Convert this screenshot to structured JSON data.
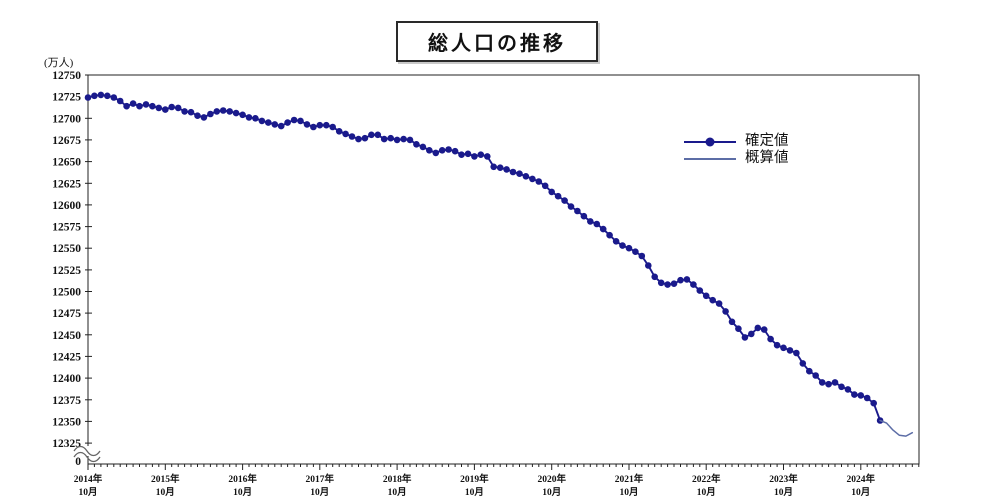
{
  "chart_data": {
    "type": "line",
    "title": "総人口の推移",
    "unit_label": "(万人)",
    "x_start": "2014-10",
    "x_tick_years": [
      "2014年",
      "2015年",
      "2016年",
      "2017年",
      "2018年",
      "2019年",
      "2020年",
      "2021年",
      "2022年",
      "2023年",
      "2024年"
    ],
    "x_tick_sublabel": "10月",
    "yticks": [
      12750,
      12725,
      12700,
      12675,
      12650,
      12625,
      12600,
      12575,
      12550,
      12525,
      12500,
      12475,
      12450,
      12425,
      12400,
      12375,
      12350,
      12325
    ],
    "ylim_display": [
      12325,
      12750
    ],
    "y_axis_zero_label": "0",
    "axis_break": true,
    "grid": false,
    "legend_position": "upper-right-inside",
    "colors": {
      "confirmed": "#1a1a8c",
      "preliminary": "#5c6da6",
      "axis": "#222222"
    },
    "series": [
      {
        "name": "確定値",
        "style": "line+marker",
        "color": "#1a1a8c",
        "start_index": 0,
        "values": [
          12724,
          12726,
          12727,
          12726,
          12724,
          12720,
          12714,
          12717,
          12714,
          12716,
          12714,
          12712,
          12710,
          12713,
          12712,
          12708,
          12707,
          12703,
          12701,
          12705,
          12708,
          12709,
          12708,
          12706,
          12704,
          12701,
          12700,
          12697,
          12695,
          12693,
          12691,
          12695,
          12698,
          12697,
          12693,
          12690,
          12692,
          12692,
          12690,
          12685,
          12682,
          12679,
          12676,
          12677,
          12681,
          12681,
          12676,
          12677,
          12675,
          12676,
          12675,
          12670,
          12667,
          12663,
          12660,
          12663,
          12664,
          12662,
          12658,
          12659,
          12656,
          12658,
          12656,
          12644,
          12643,
          12641,
          12638,
          12636,
          12633,
          12630,
          12627,
          12622,
          12615,
          12610,
          12605,
          12598,
          12593,
          12587,
          12581,
          12578,
          12572,
          12565,
          12558,
          12553,
          12550,
          12546,
          12541,
          12530,
          12517,
          12510,
          12508,
          12509,
          12513,
          12514,
          12508,
          12501,
          12495,
          12490,
          12486,
          12477,
          12465,
          12457,
          12447,
          12451,
          12458,
          12456,
          12445,
          12438,
          12435,
          12432,
          12429,
          12417,
          12408,
          12403,
          12395,
          12393,
          12395,
          12390,
          12387,
          12381,
          12380,
          12377,
          12371,
          12351
        ]
      },
      {
        "name": "概算値",
        "style": "line",
        "color": "#5c6da6",
        "start_index": 123,
        "values": [
          12351,
          12348,
          12340,
          12334,
          12333,
          12337
        ]
      }
    ]
  }
}
